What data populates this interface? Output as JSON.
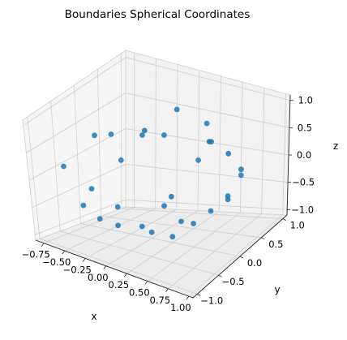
{
  "chart_data": {
    "type": "scatter",
    "projection": "3d",
    "title": "Boundaries Spherical Coordinates",
    "xlabel": "x",
    "ylabel": "y",
    "zlabel": "z",
    "xlim": [
      -0.85,
      1.05
    ],
    "ylim": [
      -1.1,
      1.1
    ],
    "zlim": [
      -1.1,
      1.1
    ],
    "x_ticks": [
      -0.75,
      -0.5,
      -0.25,
      0.0,
      0.25,
      0.5,
      0.75,
      1.0
    ],
    "x_tick_labels": [
      "−0.75",
      "−0.50",
      "−0.25",
      "0.00",
      "0.25",
      "0.50",
      "0.75",
      "1.00"
    ],
    "y_ticks": [
      -1.0,
      -0.5,
      0.0,
      0.5,
      1.0
    ],
    "y_tick_labels": [
      "−1.0",
      "−0.5",
      "0.0",
      "0.5",
      "1.0"
    ],
    "z_ticks": [
      -1.0,
      -0.5,
      0.0,
      0.5,
      1.0
    ],
    "z_tick_labels": [
      "−1.0",
      "−0.5",
      "0.0",
      "0.5",
      "1.0"
    ],
    "grid": true,
    "marker_color": "#1f77b4",
    "series": [
      {
        "points": [
          [
            -0.5,
            0.1,
            0.4
          ],
          [
            -0.1,
            0.8,
            0.6
          ],
          [
            0.3,
            0.8,
            0.2
          ],
          [
            0.1,
            0.9,
            -0.2
          ],
          [
            -0.7,
            0.0,
            -0.5
          ],
          [
            -0.6,
            -0.4,
            -0.6
          ],
          [
            -0.2,
            -0.8,
            -0.5
          ],
          [
            0.3,
            -0.8,
            -0.4
          ],
          [
            0.7,
            -0.4,
            -0.4
          ],
          [
            0.8,
            0.2,
            -0.3
          ],
          [
            0.6,
            0.6,
            0.2
          ],
          [
            -0.4,
            0.6,
            0.2
          ],
          [
            -0.6,
            0.5,
            -0.2
          ],
          [
            0.0,
            0.0,
            -1.0
          ],
          [
            0.2,
            0.3,
            -0.9
          ],
          [
            -0.3,
            -0.2,
            -0.9
          ],
          [
            0.4,
            -0.3,
            -0.8
          ],
          [
            -0.1,
            0.5,
            -0.8
          ],
          [
            0.5,
            0.4,
            -0.7
          ],
          [
            -0.5,
            0.2,
            -0.8
          ],
          [
            0.9,
            0.3,
            0.1
          ],
          [
            0.7,
            0.7,
            -0.1
          ],
          [
            0.2,
            0.95,
            0.1
          ],
          [
            -0.3,
            0.9,
            0.1
          ],
          [
            0.95,
            -0.1,
            0.0
          ],
          [
            0.6,
            -0.7,
            0.2
          ],
          [
            -0.7,
            -0.6,
            0.1
          ],
          [
            -0.8,
            0.3,
            0.2
          ],
          [
            0.4,
            0.5,
            0.7
          ],
          [
            0.1,
            -0.3,
            0.9
          ]
        ]
      }
    ]
  }
}
